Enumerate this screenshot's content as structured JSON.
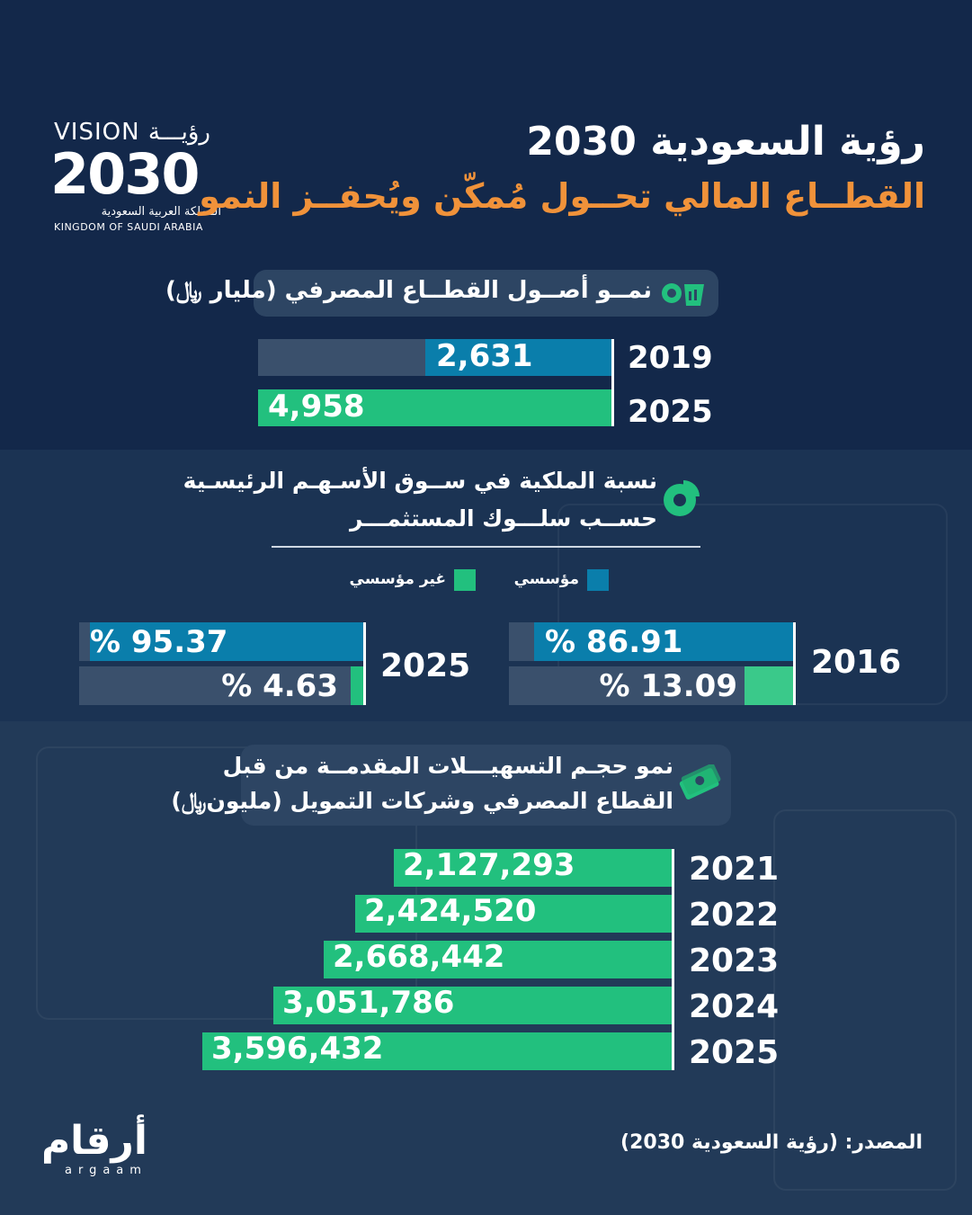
{
  "logo": {
    "vision": "VISION رؤيـــة",
    "year": "2030",
    "kingdom_ar": "المملكة العربية السعودية",
    "kingdom_en": "KINGDOM OF SAUDI ARABIA"
  },
  "header": {
    "title": "رؤية السعودية 2030",
    "subtitle": "القطــاع المالي تحــول مُمكّن ويُحفــز النمو"
  },
  "colors": {
    "blue": "#0a7eab",
    "green": "#22c07e",
    "track": "#3a506c",
    "accent": "#f0923a"
  },
  "icons": {
    "assets": "money-bags-gear-icon",
    "ownership": "pie-chart-icon",
    "facilities": "banknotes-icon"
  },
  "legend": {
    "institutional": "مؤسسي",
    "non_institutional": "غير مؤسسي"
  },
  "source": "المصدر: (رؤية السعودية 2030)",
  "brand": {
    "ar": "أرقام",
    "en": "argaam"
  },
  "chart_data": [
    {
      "type": "bar",
      "title": "نمــو أصــول القطــاع المصرفي (مليار ﷼)",
      "categories": [
        "2019",
        "2025"
      ],
      "values": [
        2631,
        4958
      ],
      "labels": [
        "2,631",
        "4,958"
      ]
    },
    {
      "type": "bar",
      "title_line1": "نسبة الملكية في ســوق الأسـهـم الرئيسـية",
      "title_line2": "حســب سلـــوك المستثمـــر",
      "categories": [
        "2016",
        "2025"
      ],
      "series": [
        {
          "name": "مؤسسي",
          "values": [
            86.91,
            95.37
          ],
          "labels": [
            "% 86.91",
            "% 95.37"
          ]
        },
        {
          "name": "غير مؤسسي",
          "values": [
            13.09,
            4.63
          ],
          "labels": [
            "% 13.09",
            "% 4.63"
          ]
        }
      ],
      "ylim": [
        0,
        100
      ]
    },
    {
      "type": "bar",
      "title_line1": "نمو حجـم التسهيـــلات المقدمــة من قبل",
      "title_line2": "القطاع المصرفي وشركات التمويل (مليون﷼)",
      "categories": [
        "2021",
        "2022",
        "2023",
        "2024",
        "2025"
      ],
      "values": [
        2127293,
        2424520,
        2668442,
        3051786,
        3596432
      ],
      "labels": [
        "2,127,293",
        "2,424,520",
        "2,668,442",
        "3,051,786",
        "3,596,432"
      ]
    }
  ]
}
